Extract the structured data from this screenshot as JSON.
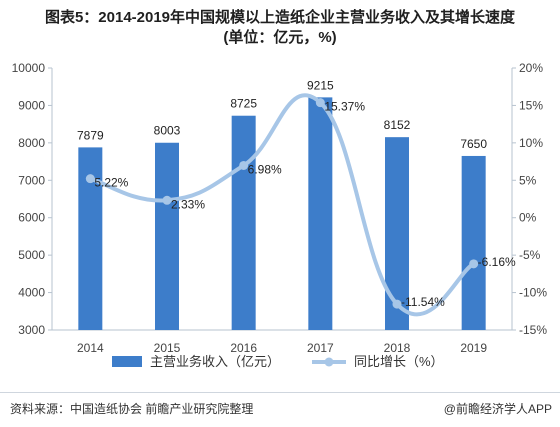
{
  "title_line1": "图表5：2014-2019年中国规模以上造纸企业主营业务收入及其增长速度",
  "title_line2": "(单位：亿元，%)",
  "chart_data": {
    "type": "bar",
    "categories": [
      "2014",
      "2015",
      "2016",
      "2017",
      "2018",
      "2019"
    ],
    "series": [
      {
        "name": "主营业务收入（亿元）",
        "type": "bar",
        "axis": "left",
        "values": [
          7879,
          8003,
          8725,
          9215,
          8152,
          7650
        ],
        "labels": [
          "7879",
          "8003",
          "8725",
          "9215",
          "8152",
          "7650"
        ]
      },
      {
        "name": "同比增长（%）",
        "type": "line",
        "axis": "right",
        "values": [
          5.22,
          2.33,
          6.98,
          15.37,
          -11.54,
          -6.16
        ],
        "labels": [
          "5.22%",
          "2.33%",
          "6.98%",
          "15.37%",
          "-11.54%",
          "-6.16%"
        ]
      }
    ],
    "ylim_left": [
      3000,
      10000
    ],
    "yticks_left": [
      "3000",
      "4000",
      "5000",
      "6000",
      "7000",
      "8000",
      "9000",
      "10000"
    ],
    "ylim_right": [
      -15,
      20
    ],
    "yticks_right": [
      "-15%",
      "-10%",
      "-5%",
      "0%",
      "5%",
      "10%",
      "15%",
      "20%"
    ],
    "colors": {
      "bar": "#3d7dca",
      "line": "#a7c6e7",
      "axis": "#b7c3cf"
    },
    "legend_position": "bottom",
    "grid": false
  },
  "footer": {
    "source": "资料来源：中国造纸协会 前瞻产业研究院整理",
    "brand": "@前瞻经济学人APP"
  }
}
